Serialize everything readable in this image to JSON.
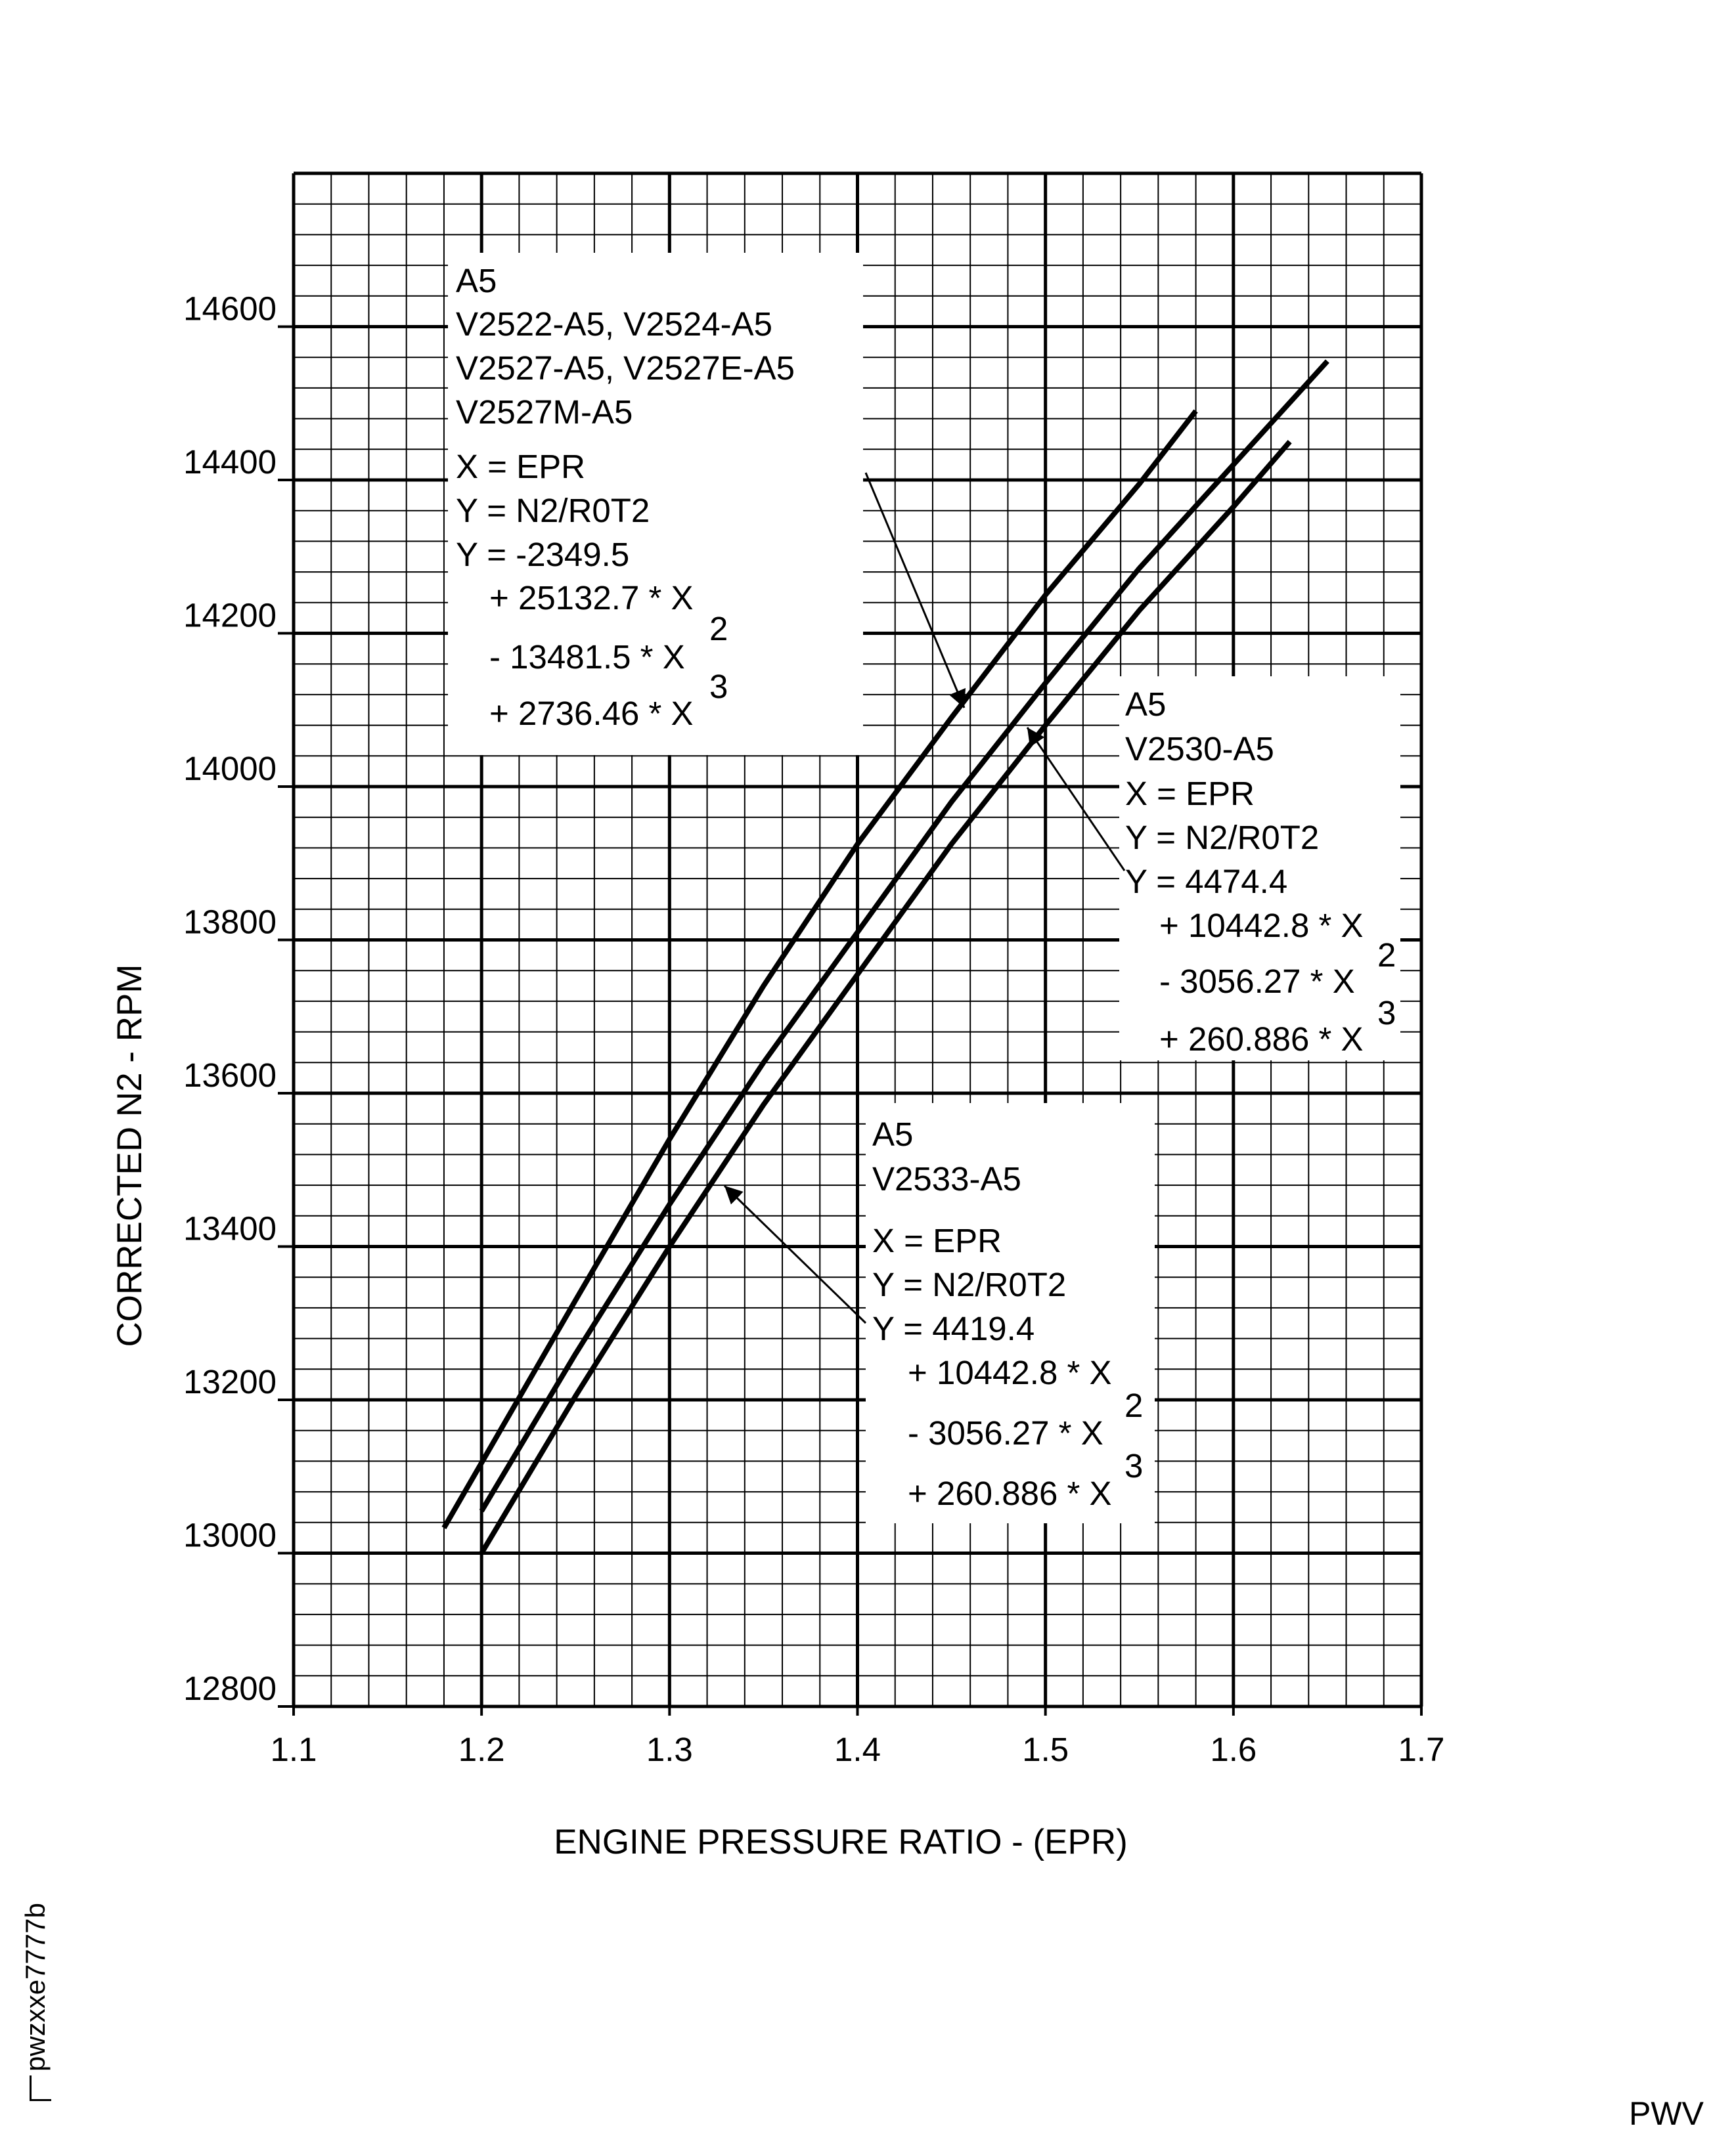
{
  "chart_data": {
    "type": "line",
    "xlabel": "ENGINE PRESSURE RATIO - (EPR)",
    "ylabel": "CORRECTED N2 - RPM",
    "xlim": [
      1.1,
      1.7
    ],
    "ylim": [
      12800,
      14800
    ],
    "x_ticks": [
      "1.1",
      "1.2",
      "1.3",
      "1.4",
      "1.5",
      "1.6",
      "1.7"
    ],
    "y_ticks": [
      "12800",
      "13000",
      "13200",
      "13400",
      "13600",
      "13800",
      "14000",
      "14200",
      "14400",
      "14600"
    ],
    "grid": true,
    "series": [
      {
        "name": "V2522-A5 / V2524-A5 / V2527-A5 / V2527E-A5 / V2527M-A5",
        "x": [
          1.18,
          1.25,
          1.3,
          1.35,
          1.4,
          1.45,
          1.5,
          1.55,
          1.58
        ],
        "y": [
          13033,
          13330,
          13540,
          13740,
          13925,
          14090,
          14250,
          14395,
          14490
        ]
      },
      {
        "name": "V2530-A5",
        "x": [
          1.2,
          1.25,
          1.3,
          1.35,
          1.4,
          1.45,
          1.5,
          1.55,
          1.6,
          1.65
        ],
        "y": [
          13055,
          13260,
          13455,
          13640,
          13810,
          13980,
          14135,
          14285,
          14420,
          14555
        ]
      },
      {
        "name": "V2533-A5",
        "x": [
          1.2,
          1.25,
          1.3,
          1.35,
          1.4,
          1.45,
          1.5,
          1.55,
          1.6,
          1.63
        ],
        "y": [
          13000,
          13205,
          13400,
          13585,
          13755,
          13925,
          14080,
          14230,
          14365,
          14450
        ]
      }
    ],
    "annotations": [
      {
        "id": "a5_main",
        "lines": [
          "A5",
          "V2522-A5, V2524-A5",
          "V2527-A5, V2527E-A5",
          "V2527M-A5"
        ],
        "eq_x": "X = EPR",
        "eq_y": "Y = N2/R0T2",
        "eq_c": "Y = -2349.5",
        "term1": "+ 25132.7 * X",
        "term2": "- 13481.5 * X",
        "term3": "+ 2736.46 * X",
        "exp2": "2",
        "exp3": "3"
      },
      {
        "id": "a5_v2530",
        "lines": [
          "A5",
          "V2530-A5"
        ],
        "eq_x": "X = EPR",
        "eq_y": "Y = N2/R0T2",
        "eq_c": "Y = 4474.4",
        "term1": "+ 10442.8 * X",
        "term2": "- 3056.27 * X",
        "term3": "+ 260.886 * X",
        "exp2": "2",
        "exp3": "3"
      },
      {
        "id": "a5_v2533",
        "lines": [
          "A5",
          "V2533-A5"
        ],
        "eq_x": "X = EPR",
        "eq_y": "Y = N2/R0T2",
        "eq_c": "Y = 4419.4",
        "term1": "+ 10442.8 * X",
        "term2": "- 3056.27 * X",
        "term3": "+ 260.886 * X",
        "exp2": "2",
        "exp3": "3"
      }
    ]
  },
  "footer": {
    "figure_code": "pwzxxe7777b",
    "corner_code": "PWV"
  }
}
